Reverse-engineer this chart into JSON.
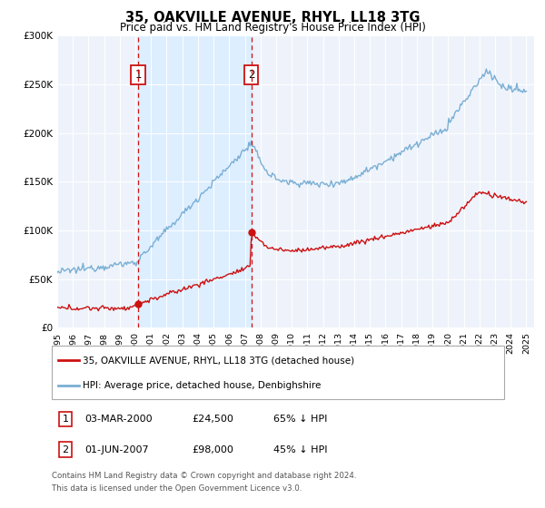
{
  "title": "35, OAKVILLE AVENUE, RHYL, LL18 3TG",
  "subtitle": "Price paid vs. HM Land Registry's House Price Index (HPI)",
  "legend_label_red": "35, OAKVILLE AVENUE, RHYL, LL18 3TG (detached house)",
  "legend_label_blue": "HPI: Average price, detached house, Denbighshire",
  "footnote_line1": "Contains HM Land Registry data © Crown copyright and database right 2024.",
  "footnote_line2": "This data is licensed under the Open Government Licence v3.0.",
  "sale1_date": "03-MAR-2000",
  "sale1_price": "£24,500",
  "sale1_hpi": "65% ↓ HPI",
  "sale1_year": 2000.17,
  "sale2_date": "01-JUN-2007",
  "sale2_price": "£98,000",
  "sale2_hpi": "45% ↓ HPI",
  "sale2_year": 2007.42,
  "sale1_value": 24500,
  "sale2_value": 98000,
  "ylim_max": 300000,
  "hpi_color": "#7aafd4",
  "sale_color": "#cc1111",
  "shade_color": "#ddeeff",
  "xmin": 1995,
  "xmax": 2025.5
}
